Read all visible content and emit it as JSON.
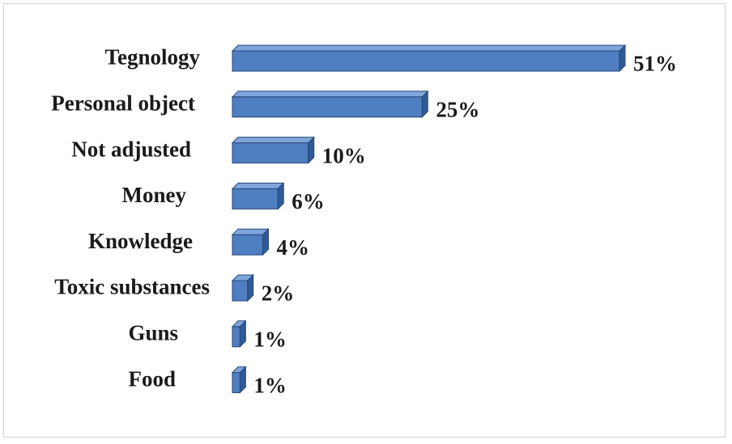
{
  "chart_data": {
    "type": "bar",
    "orientation": "horizontal",
    "style": "3d",
    "categories": [
      "Tegnology",
      "Personal object",
      "Not adjusted",
      "Money",
      "Knowledge",
      "Toxic substances",
      "Guns",
      "Food"
    ],
    "values": [
      51,
      25,
      10,
      6,
      4,
      2,
      1,
      1
    ],
    "value_labels": [
      "51%",
      "25%",
      "10%",
      "6%",
      "4%",
      "2%",
      "1%",
      "1%"
    ],
    "unit": "%",
    "title": "",
    "xlabel": "",
    "ylabel": "",
    "xlim": [
      0,
      51
    ],
    "grid": false,
    "legend": "none",
    "colors": {
      "bar_front": "#4f7fc1",
      "bar_top": "#7fa6da",
      "bar_side": "#2f5a96",
      "bar_edge": "#27477a"
    }
  }
}
